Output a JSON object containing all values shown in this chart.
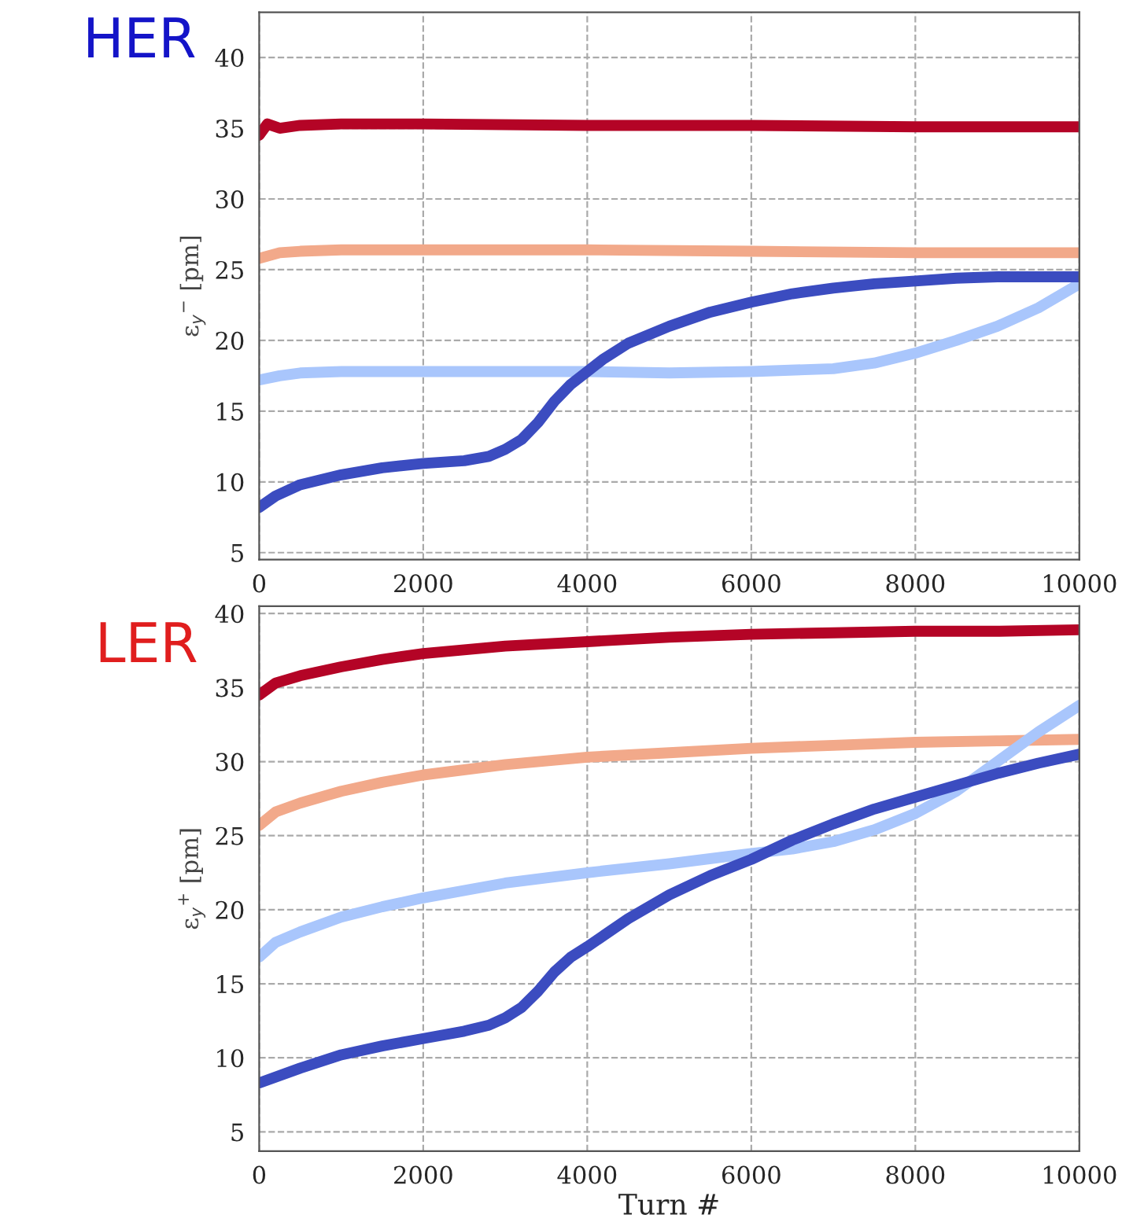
{
  "chart_data": [
    {
      "type": "line",
      "ylabel": "ε$_{y}$$^{−}$ [pm]",
      "annotations": [
        "HER"
      ],
      "xlim": [
        0,
        10000
      ],
      "ylim": [
        4.5,
        43.2
      ],
      "xticks": [
        0,
        2000,
        4000,
        6000,
        8000,
        10000
      ],
      "yticks": [
        5,
        10,
        15,
        20,
        25,
        30,
        35,
        40
      ],
      "grid": true,
      "legend": false,
      "marker": "none",
      "line_style": "solid",
      "series": [
        {
          "color": "#b40426",
          "x": [
            0,
            100,
            250,
            500,
            1000,
            2000,
            4000,
            6000,
            8000,
            10000
          ],
          "values": [
            34.5,
            35.3,
            35.0,
            35.2,
            35.3,
            35.3,
            35.2,
            35.2,
            35.1,
            35.1
          ]
        },
        {
          "color": "#f2a98a",
          "x": [
            0,
            250,
            500,
            1000,
            2000,
            4000,
            6000,
            8000,
            10000
          ],
          "values": [
            25.8,
            26.2,
            26.3,
            26.4,
            26.4,
            26.4,
            26.3,
            26.2,
            26.2
          ]
        },
        {
          "color": "#a9c6fc",
          "x": [
            0,
            250,
            500,
            1000,
            2000,
            4000,
            5000,
            6000,
            7000,
            7500,
            8000,
            8500,
            9000,
            9500,
            10000
          ],
          "values": [
            17.2,
            17.5,
            17.7,
            17.8,
            17.8,
            17.8,
            17.7,
            17.8,
            18.0,
            18.4,
            19.1,
            20.0,
            21.0,
            22.3,
            24.0
          ]
        },
        {
          "color": "#3b4cc0",
          "x": [
            0,
            200,
            500,
            1000,
            1500,
            2000,
            2500,
            2800,
            3000,
            3200,
            3400,
            3600,
            3800,
            4000,
            4200,
            4500,
            5000,
            5500,
            6000,
            6500,
            7000,
            7500,
            8000,
            8500,
            9000,
            9500,
            10000
          ],
          "values": [
            8.2,
            9.0,
            9.8,
            10.5,
            11.0,
            11.3,
            11.5,
            11.8,
            12.3,
            13.0,
            14.2,
            15.7,
            16.9,
            17.8,
            18.7,
            19.8,
            21.0,
            22.0,
            22.7,
            23.3,
            23.7,
            24.0,
            24.2,
            24.4,
            24.5,
            24.5,
            24.5
          ]
        }
      ]
    },
    {
      "type": "line",
      "xlabel": "Turn #",
      "ylabel": "ε$_{y}$$^{+}$ [pm]",
      "annotations": [
        "LER"
      ],
      "xlim": [
        0,
        10000
      ],
      "ylim": [
        3.7,
        40.5
      ],
      "xticks": [
        0,
        2000,
        4000,
        6000,
        8000,
        10000
      ],
      "yticks": [
        5,
        10,
        15,
        20,
        25,
        30,
        35,
        40
      ],
      "grid": true,
      "legend": false,
      "marker": "none",
      "line_style": "solid",
      "series": [
        {
          "color": "#b40426",
          "x": [
            0,
            200,
            500,
            1000,
            1500,
            2000,
            3000,
            4000,
            5000,
            6000,
            7000,
            8000,
            9000,
            10000
          ],
          "values": [
            34.5,
            35.3,
            35.8,
            36.4,
            36.9,
            37.3,
            37.8,
            38.1,
            38.4,
            38.6,
            38.7,
            38.8,
            38.8,
            38.9
          ]
        },
        {
          "color": "#f2a98a",
          "x": [
            0,
            200,
            500,
            1000,
            1500,
            2000,
            3000,
            4000,
            5000,
            6000,
            7000,
            8000,
            9000,
            10000
          ],
          "values": [
            25.7,
            26.6,
            27.2,
            28.0,
            28.6,
            29.1,
            29.8,
            30.3,
            30.6,
            30.9,
            31.1,
            31.3,
            31.4,
            31.5
          ]
        },
        {
          "color": "#a9c6fc",
          "x": [
            0,
            200,
            500,
            1000,
            1500,
            2000,
            3000,
            4000,
            5000,
            6000,
            6500,
            7000,
            7500,
            8000,
            8500,
            9000,
            9500,
            10000
          ],
          "values": [
            16.8,
            17.8,
            18.5,
            19.5,
            20.2,
            20.8,
            21.8,
            22.5,
            23.1,
            23.8,
            24.1,
            24.6,
            25.4,
            26.5,
            28.0,
            30.0,
            32.0,
            33.8
          ]
        },
        {
          "color": "#3b4cc0",
          "x": [
            0,
            500,
            1000,
            1500,
            2000,
            2500,
            2800,
            3000,
            3200,
            3400,
            3600,
            3800,
            4000,
            4500,
            5000,
            5500,
            6000,
            6500,
            7000,
            7500,
            8000,
            8500,
            9000,
            9500,
            10000
          ],
          "values": [
            8.3,
            9.3,
            10.2,
            10.8,
            11.3,
            11.8,
            12.2,
            12.7,
            13.4,
            14.5,
            15.8,
            16.8,
            17.5,
            19.4,
            21.0,
            22.3,
            23.4,
            24.7,
            25.8,
            26.8,
            27.6,
            28.4,
            29.2,
            29.9,
            30.5
          ]
        }
      ]
    }
  ]
}
